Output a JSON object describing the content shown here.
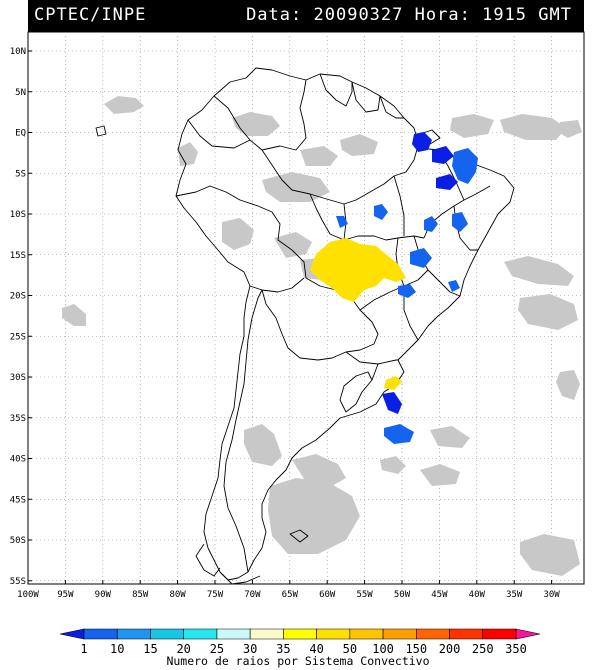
{
  "header": {
    "org": "CPTEC/INPE",
    "date_label": "Data:",
    "date": "20090327",
    "time_label": "Hora:",
    "time": "1915",
    "tz": "GMT"
  },
  "map": {
    "lat_labels": [
      "10N",
      "5N",
      "EQ",
      "5S",
      "10S",
      "15S",
      "20S",
      "25S",
      "30S",
      "35S",
      "40S",
      "45S",
      "50S",
      "55S"
    ],
    "lon_labels": [
      "100W",
      "95W",
      "90W",
      "85W",
      "80W",
      "75W",
      "70W",
      "65W",
      "60W",
      "55W",
      "50W",
      "45W",
      "40W",
      "35W",
      "30W"
    ],
    "colors": {
      "cloud": "#c8c8c8",
      "background": "#ffffff"
    }
  },
  "colorbar": {
    "title": "Numero de raios por Sistema Convectivo",
    "labels": [
      "1",
      "10",
      "15",
      "20",
      "25",
      "30",
      "35",
      "40",
      "50",
      "100",
      "150",
      "200",
      "250",
      "350"
    ],
    "colors": [
      "#0a1ee6",
      "#1464f0",
      "#1e96f0",
      "#14c8e6",
      "#28e6f0",
      "#c8fafa",
      "#fafac8",
      "#ffff00",
      "#ffe100",
      "#ffc300",
      "#ffa000",
      "#ff6400",
      "#ff3200",
      "#ff0000",
      "#ff1493"
    ]
  }
}
